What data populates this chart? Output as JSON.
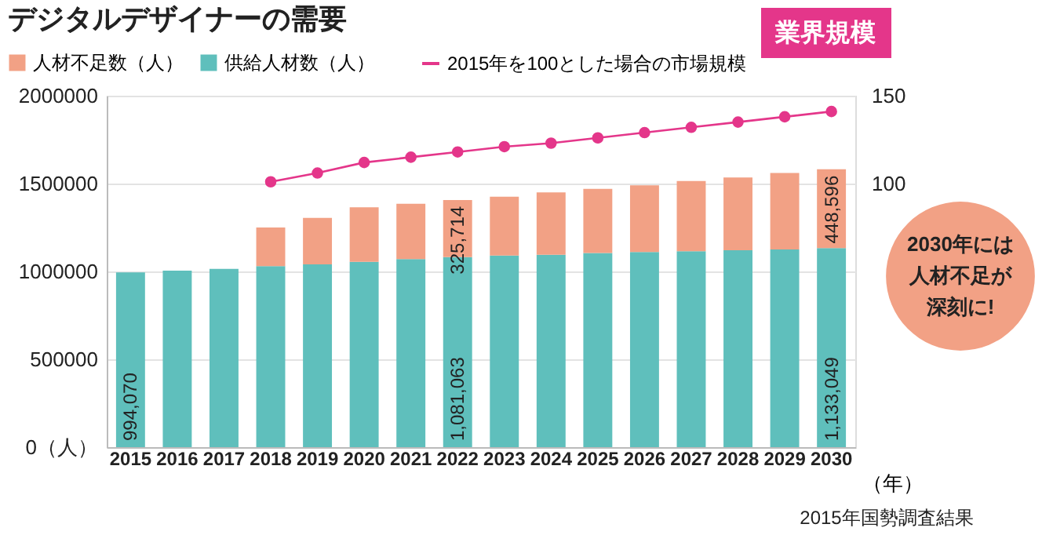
{
  "chart_data": {
    "type": "bar",
    "title": "デジタルデザイナーの需要",
    "stacked": true,
    "categories": [
      "2015",
      "2016",
      "2017",
      "2018",
      "2019",
      "2020",
      "2021",
      "2022",
      "2023",
      "2024",
      "2025",
      "2026",
      "2027",
      "2028",
      "2029",
      "2030"
    ],
    "series": [
      {
        "name": "供給人材数（人）",
        "color": "#5fbfbc",
        "values": [
          994070,
          1005000,
          1015000,
          1030000,
          1040000,
          1055000,
          1070000,
          1081063,
          1090000,
          1095000,
          1105000,
          1110000,
          1115000,
          1120000,
          1125000,
          1133049
        ],
        "value_labels": [
          "994,070",
          null,
          null,
          null,
          null,
          null,
          null,
          "1,081,063",
          null,
          null,
          null,
          null,
          null,
          null,
          null,
          "1,133,049"
        ]
      },
      {
        "name": "人材不足数（人）",
        "color": "#f2a185",
        "values": [
          null,
          null,
          null,
          220000,
          265000,
          310000,
          315000,
          325714,
          335000,
          355000,
          365000,
          380000,
          400000,
          415000,
          435000,
          448596
        ],
        "value_labels": [
          null,
          null,
          null,
          null,
          null,
          null,
          null,
          "325,714",
          null,
          null,
          null,
          null,
          null,
          null,
          null,
          "448,596"
        ]
      },
      {
        "name": "2015年を100とした場合の市場規模",
        "color": "#e4368a",
        "type": "line",
        "axis": "y2",
        "marker": "circle",
        "values": [
          null,
          null,
          null,
          101,
          106,
          112,
          115,
          118,
          121,
          123,
          126,
          129,
          132,
          135,
          138,
          141
        ]
      }
    ],
    "xlabel": "（年）",
    "ylim": [
      0,
      2000000
    ],
    "yticks": [
      {
        "value": 0,
        "label": "0（人）"
      },
      500000,
      1000000,
      1500000,
      2000000
    ],
    "y2lim": [
      -50,
      150
    ],
    "y2ticks": [
      100,
      150
    ],
    "grid": "y",
    "legend": "top left",
    "annotations": [
      "業界規模",
      "2030年には人材不足が深刻に!",
      "2015年国勢調査結果"
    ]
  }
}
